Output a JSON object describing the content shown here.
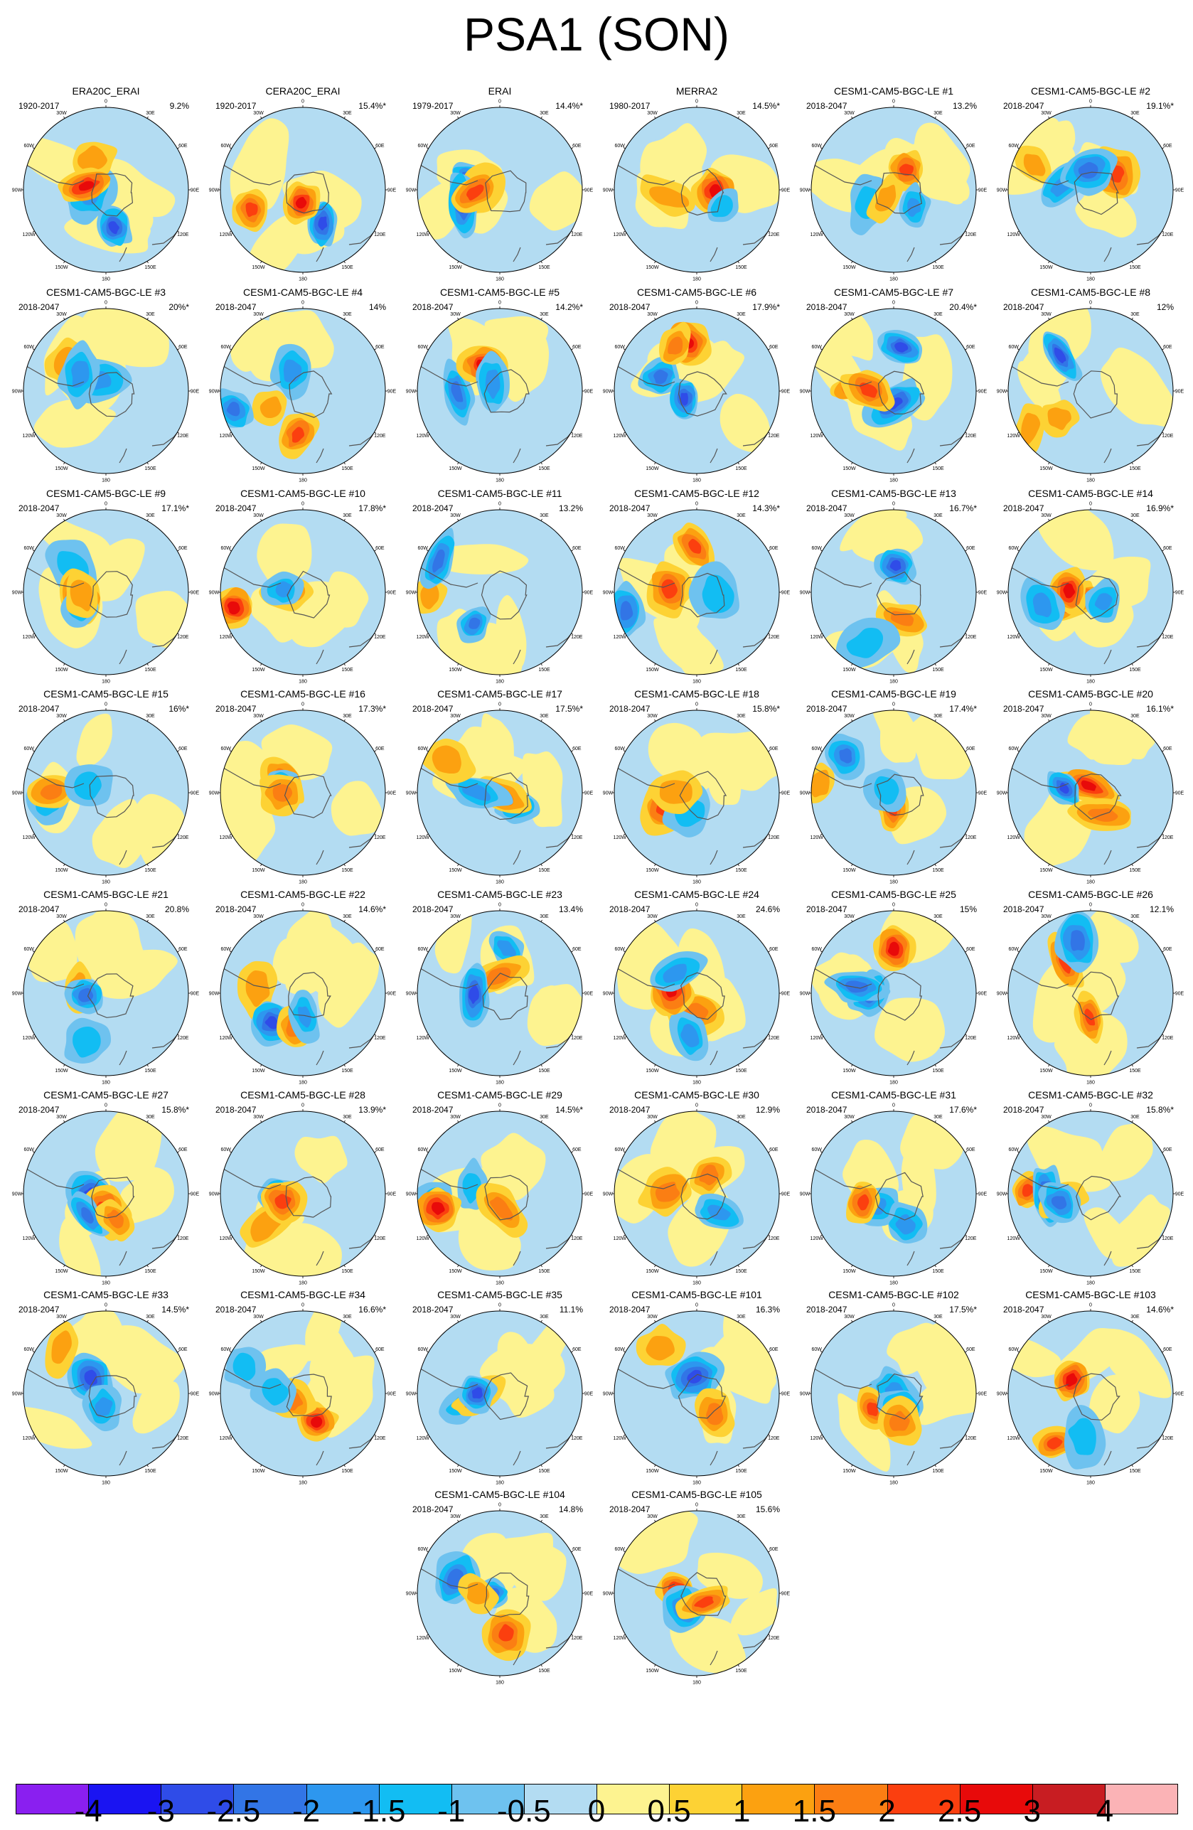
{
  "title": "PSA1 (SON)",
  "lon_labels": [
    "0",
    "30E",
    "60E",
    "90E",
    "120E",
    "150E",
    "180",
    "150W",
    "120W",
    "90W",
    "60W",
    "30W"
  ],
  "panels": [
    {
      "title": "ERA20C_ERAI",
      "period": "1920-2017",
      "pct": "9.2%"
    },
    {
      "title": "CERA20C_ERAI",
      "period": "1920-2017",
      "pct": "15.4%*"
    },
    {
      "title": "ERAI",
      "period": "1979-2017",
      "pct": "14.4%*"
    },
    {
      "title": "MERRA2",
      "period": "1980-2017",
      "pct": "14.5%*"
    },
    {
      "title": "CESM1-CAM5-BGC-LE #1",
      "period": "2018-2047",
      "pct": "13.2%"
    },
    {
      "title": "CESM1-CAM5-BGC-LE #2",
      "period": "2018-2047",
      "pct": "19.1%*"
    },
    {
      "title": "CESM1-CAM5-BGC-LE #3",
      "period": "2018-2047",
      "pct": "20%*"
    },
    {
      "title": "CESM1-CAM5-BGC-LE #4",
      "period": "2018-2047",
      "pct": "14%"
    },
    {
      "title": "CESM1-CAM5-BGC-LE #5",
      "period": "2018-2047",
      "pct": "14.2%*"
    },
    {
      "title": "CESM1-CAM5-BGC-LE #6",
      "period": "2018-2047",
      "pct": "17.9%*"
    },
    {
      "title": "CESM1-CAM5-BGC-LE #7",
      "period": "2018-2047",
      "pct": "20.4%*"
    },
    {
      "title": "CESM1-CAM5-BGC-LE #8",
      "period": "2018-2047",
      "pct": "12%"
    },
    {
      "title": "CESM1-CAM5-BGC-LE #9",
      "period": "2018-2047",
      "pct": "17.1%*"
    },
    {
      "title": "CESM1-CAM5-BGC-LE #10",
      "period": "2018-2047",
      "pct": "17.8%*"
    },
    {
      "title": "CESM1-CAM5-BGC-LE #11",
      "period": "2018-2047",
      "pct": "13.2%"
    },
    {
      "title": "CESM1-CAM5-BGC-LE #12",
      "period": "2018-2047",
      "pct": "14.3%*"
    },
    {
      "title": "CESM1-CAM5-BGC-LE #13",
      "period": "2018-2047",
      "pct": "16.7%*"
    },
    {
      "title": "CESM1-CAM5-BGC-LE #14",
      "period": "2018-2047",
      "pct": "16.9%*"
    },
    {
      "title": "CESM1-CAM5-BGC-LE #15",
      "period": "2018-2047",
      "pct": "16%*"
    },
    {
      "title": "CESM1-CAM5-BGC-LE #16",
      "period": "2018-2047",
      "pct": "17.3%*"
    },
    {
      "title": "CESM1-CAM5-BGC-LE #17",
      "period": "2018-2047",
      "pct": "17.5%*"
    },
    {
      "title": "CESM1-CAM5-BGC-LE #18",
      "period": "2018-2047",
      "pct": "15.8%*"
    },
    {
      "title": "CESM1-CAM5-BGC-LE #19",
      "period": "2018-2047",
      "pct": "17.4%*"
    },
    {
      "title": "CESM1-CAM5-BGC-LE #20",
      "period": "2018-2047",
      "pct": "16.1%*"
    },
    {
      "title": "CESM1-CAM5-BGC-LE #21",
      "period": "2018-2047",
      "pct": "20.8%"
    },
    {
      "title": "CESM1-CAM5-BGC-LE #22",
      "period": "2018-2047",
      "pct": "14.6%*"
    },
    {
      "title": "CESM1-CAM5-BGC-LE #23",
      "period": "2018-2047",
      "pct": "13.4%"
    },
    {
      "title": "CESM1-CAM5-BGC-LE #24",
      "period": "2018-2047",
      "pct": "24.6%"
    },
    {
      "title": "CESM1-CAM5-BGC-LE #25",
      "period": "2018-2047",
      "pct": "15%"
    },
    {
      "title": "CESM1-CAM5-BGC-LE #26",
      "period": "2018-2047",
      "pct": "12.1%"
    },
    {
      "title": "CESM1-CAM5-BGC-LE #27",
      "period": "2018-2047",
      "pct": "15.8%*"
    },
    {
      "title": "CESM1-CAM5-BGC-LE #28",
      "period": "2018-2047",
      "pct": "13.9%*"
    },
    {
      "title": "CESM1-CAM5-BGC-LE #29",
      "period": "2018-2047",
      "pct": "14.5%*"
    },
    {
      "title": "CESM1-CAM5-BGC-LE #30",
      "period": "2018-2047",
      "pct": "12.9%"
    },
    {
      "title": "CESM1-CAM5-BGC-LE #31",
      "period": "2018-2047",
      "pct": "17.6%*"
    },
    {
      "title": "CESM1-CAM5-BGC-LE #32",
      "period": "2018-2047",
      "pct": "15.8%*"
    },
    {
      "title": "CESM1-CAM5-BGC-LE #33",
      "period": "2018-2047",
      "pct": "14.5%*"
    },
    {
      "title": "CESM1-CAM5-BGC-LE #34",
      "period": "2018-2047",
      "pct": "16.6%*"
    },
    {
      "title": "CESM1-CAM5-BGC-LE #35",
      "period": "2018-2047",
      "pct": "11.1%"
    },
    {
      "title": "CESM1-CAM5-BGC-LE #101",
      "period": "2018-2047",
      "pct": "16.3%"
    },
    {
      "title": "CESM1-CAM5-BGC-LE #102",
      "period": "2018-2047",
      "pct": "17.5%*"
    },
    {
      "title": "CESM1-CAM5-BGC-LE #103",
      "period": "2018-2047",
      "pct": "14.6%*"
    },
    {
      "title": "CESM1-CAM5-BGC-LE #104",
      "period": "2018-2047",
      "pct": "14.8%"
    },
    {
      "title": "CESM1-CAM5-BGC-LE #105",
      "period": "2018-2047",
      "pct": "15.6%"
    }
  ],
  "colorbar": {
    "colors": [
      "#8a1ff0",
      "#1a14f2",
      "#2f4ce8",
      "#3275e6",
      "#2d97ef",
      "#12bdf3",
      "#6ec2ef",
      "#b3dcf2",
      "#fdf390",
      "#fdd234",
      "#fca110",
      "#fb7e13",
      "#fb3f0f",
      "#e80a0a",
      "#c81d22",
      "#fbb3b6"
    ],
    "labels": [
      "-4",
      "-3",
      "-2.5",
      "-2",
      "-1.5",
      "-1",
      "-0.5",
      "0",
      "0.5",
      "1",
      "1.5",
      "2",
      "2.5",
      "3",
      "4"
    ]
  }
}
